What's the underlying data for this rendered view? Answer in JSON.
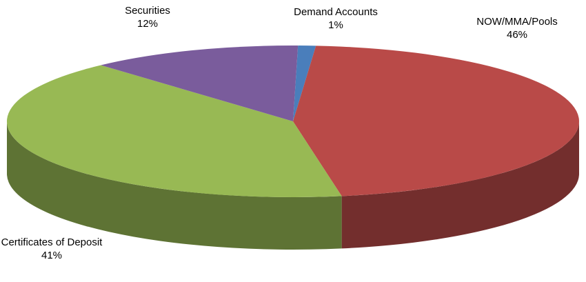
{
  "chart_data": {
    "type": "pie3d",
    "categories": [
      "Demand Accounts",
      "NOW/MMA/Pools",
      "Certificates of Deposit",
      "Securities"
    ],
    "values": [
      1,
      46,
      41,
      12
    ],
    "value_labels": [
      "1%",
      "46%",
      "41%",
      "12%"
    ],
    "colors": [
      "#4a7ebb",
      "#b94a48",
      "#98b954",
      "#7a5c9c"
    ]
  }
}
